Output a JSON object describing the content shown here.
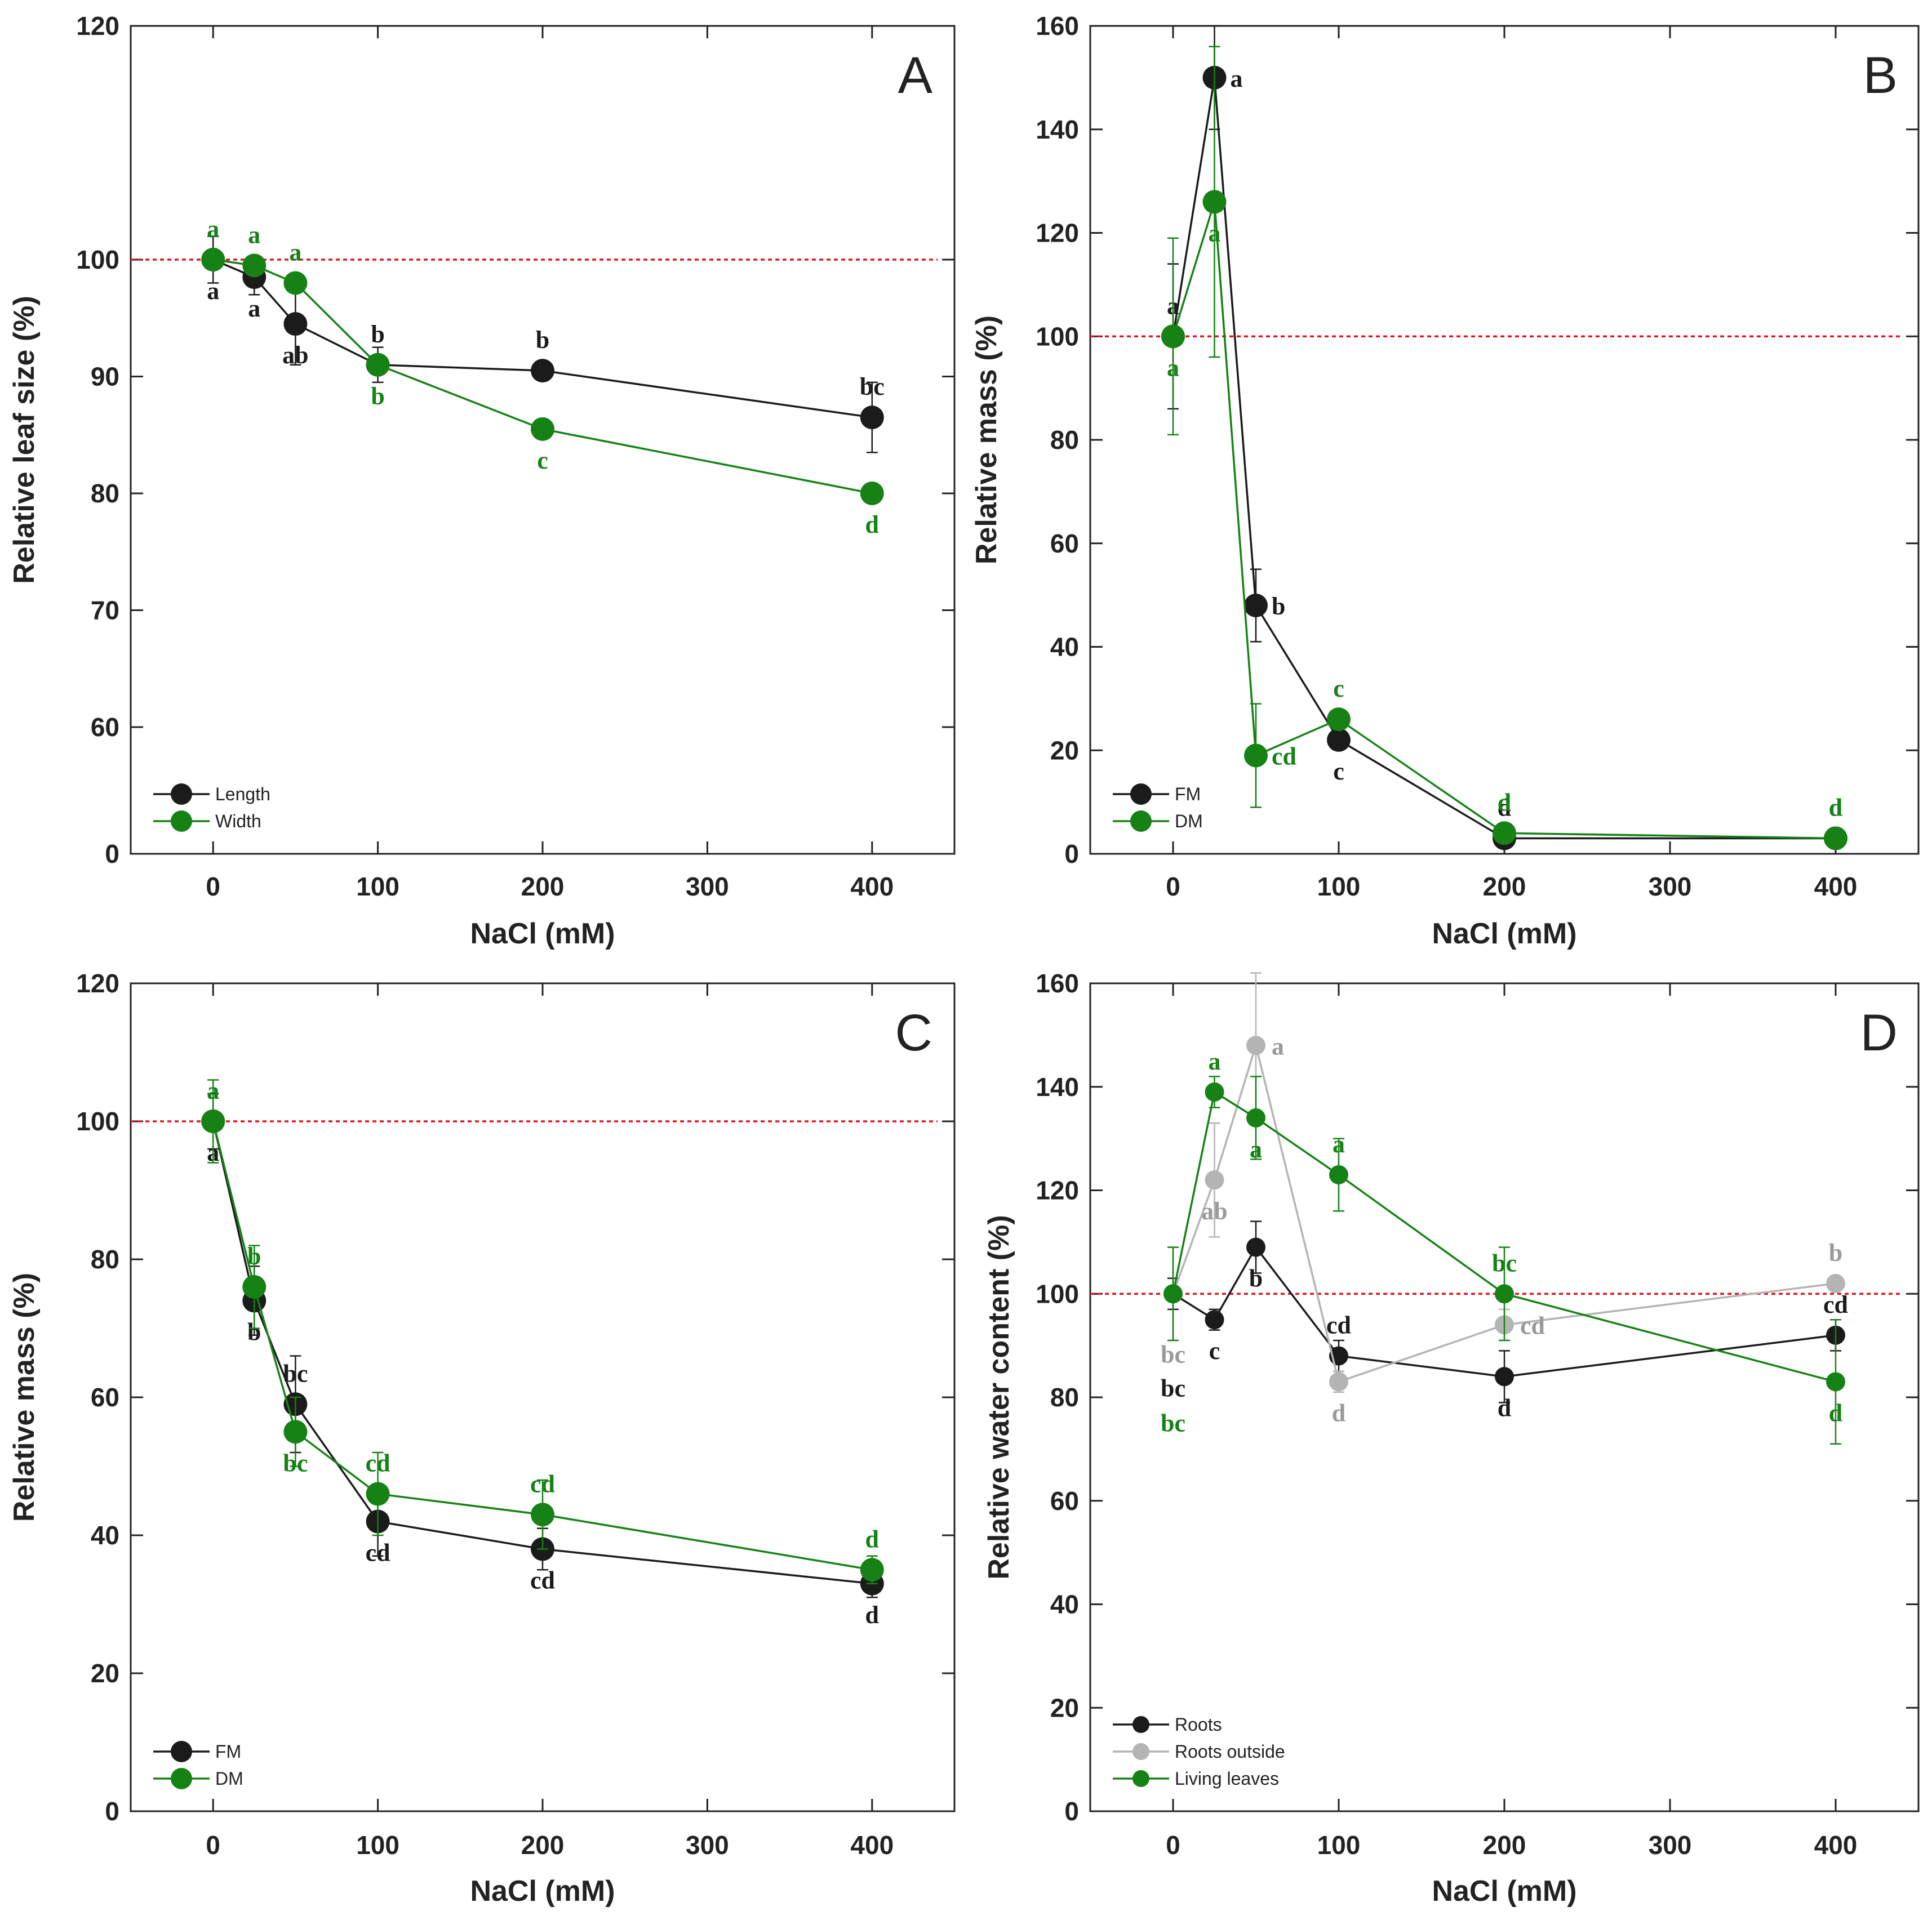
{
  "figure": {
    "description_title": "",
    "colors": {
      "black": "#1b1b1b",
      "green": "#168216",
      "gray": "#b4b4b4",
      "gray_letter": "#9a9a9a",
      "reference_line": "#e0141b",
      "axis": "#222222"
    }
  },
  "chart_data": [
    {
      "panel": "A",
      "type": "line",
      "xlabel": "NaCl (mM)",
      "ylabel": "Relative leaf size (%)",
      "xlim": [
        -50,
        450
      ],
      "ylim": [
        0,
        120
      ],
      "y_broken": true,
      "y_tick_values": [
        0,
        60,
        70,
        80,
        90,
        100,
        120
      ],
      "y_tick_labels": [
        "0",
        "60",
        "70",
        "80",
        "90",
        "100",
        "120"
      ],
      "x_ticks": [
        0,
        100,
        200,
        300,
        400
      ],
      "x_tick_labels": [
        "0",
        "100",
        "200",
        "300",
        "400"
      ],
      "reference_line": 100,
      "legend_position": "bottom-left",
      "series": [
        {
          "name": "Length",
          "color": "black",
          "x": [
            0,
            25,
            50,
            100,
            200,
            400
          ],
          "y": [
            100,
            98.5,
            94.5,
            91,
            90.5,
            86.5
          ],
          "err": [
            2,
            1.5,
            3.5,
            1.5,
            0.5,
            3
          ],
          "letters": [
            "a",
            "a",
            "ab",
            "b",
            "b",
            "bc"
          ],
          "letter_pos": [
            "below",
            "below",
            "below",
            "above",
            "above",
            "above"
          ]
        },
        {
          "name": "Width",
          "color": "green",
          "x": [
            0,
            25,
            50,
            100,
            200,
            400
          ],
          "y": [
            100,
            99.5,
            98,
            91,
            85.5,
            80
          ],
          "err": [
            0.5,
            0.5,
            0.5,
            0.5,
            0.5,
            0.5
          ],
          "letters": [
            "a",
            "a",
            "a",
            "b",
            "c",
            "d"
          ],
          "letter_pos": [
            "above",
            "above",
            "above",
            "below",
            "below",
            "below"
          ]
        }
      ]
    },
    {
      "panel": "B",
      "type": "line",
      "xlabel": "NaCl (mM)",
      "ylabel": "Relative mass (%)",
      "xlim": [
        -50,
        450
      ],
      "ylim": [
        0,
        160
      ],
      "y_tick_values": [
        0,
        20,
        40,
        60,
        80,
        100,
        120,
        140,
        160
      ],
      "y_tick_labels": [
        "0",
        "20",
        "40",
        "60",
        "80",
        "100",
        "120",
        "140",
        "160"
      ],
      "x_ticks": [
        0,
        100,
        200,
        300,
        400
      ],
      "x_tick_labels": [
        "0",
        "100",
        "200",
        "300",
        "400"
      ],
      "reference_line": 100,
      "legend_position": "bottom-left",
      "series": [
        {
          "name": "FM",
          "color": "black",
          "x": [
            0,
            25,
            50,
            100,
            200,
            400
          ],
          "y": [
            100,
            150,
            48,
            22,
            3,
            3
          ],
          "err": [
            14,
            10,
            7,
            1,
            0.5,
            0.5
          ],
          "letters": [
            "a",
            "a",
            "b",
            "c",
            "d",
            "d"
          ],
          "letter_pos": [
            "above",
            "right",
            "right",
            "below",
            "above",
            "above"
          ]
        },
        {
          "name": "DM",
          "color": "green",
          "x": [
            0,
            25,
            50,
            100,
            200,
            400
          ],
          "y": [
            100,
            126,
            19,
            26,
            4,
            3
          ],
          "err": [
            19,
            30,
            10,
            1,
            0.5,
            0.5
          ],
          "letters": [
            "a",
            "a",
            "cd",
            "c",
            "d",
            "d"
          ],
          "letter_pos": [
            "below",
            "below",
            "right",
            "above",
            "above",
            "above"
          ]
        }
      ]
    },
    {
      "panel": "C",
      "type": "line",
      "xlabel": "NaCl (mM)",
      "ylabel": "Relative mass (%)",
      "xlim": [
        -50,
        450
      ],
      "ylim": [
        0,
        120
      ],
      "y_tick_values": [
        0,
        20,
        40,
        60,
        80,
        100,
        120
      ],
      "y_tick_labels": [
        "0",
        "20",
        "40",
        "60",
        "80",
        "100",
        "120"
      ],
      "x_ticks": [
        0,
        100,
        200,
        300,
        400
      ],
      "x_tick_labels": [
        "0",
        "100",
        "200",
        "300",
        "400"
      ],
      "reference_line": 100,
      "legend_position": "bottom-left",
      "series": [
        {
          "name": "FM",
          "color": "black",
          "x": [
            0,
            25,
            50,
            100,
            200,
            400
          ],
          "y": [
            100,
            74,
            59,
            42,
            38,
            33
          ],
          "err": [
            4,
            5,
            7,
            5,
            3,
            2
          ],
          "letters": [
            "a",
            "b",
            "bc",
            "cd",
            "cd",
            "d"
          ],
          "letter_pos": [
            "below",
            "below",
            "above",
            "below",
            "below",
            "below"
          ]
        },
        {
          "name": "DM",
          "color": "green",
          "x": [
            0,
            25,
            50,
            100,
            200,
            400
          ],
          "y": [
            100,
            76,
            55,
            46,
            43,
            35
          ],
          "err": [
            6,
            6,
            5,
            6,
            5,
            2
          ],
          "letters": [
            "a",
            "b",
            "bc",
            "cd",
            "cd",
            "d"
          ],
          "letter_pos": [
            "above",
            "above",
            "below",
            "above",
            "above",
            "above"
          ]
        }
      ]
    },
    {
      "panel": "D",
      "type": "line",
      "xlabel": "NaCl (mM)",
      "ylabel": "Relative water content (%)",
      "xlim": [
        -50,
        450
      ],
      "ylim": [
        0,
        160
      ],
      "y_tick_values": [
        0,
        20,
        40,
        60,
        80,
        100,
        120,
        140,
        160
      ],
      "y_tick_labels": [
        "0",
        "20",
        "40",
        "60",
        "80",
        "100",
        "120",
        "140",
        "160"
      ],
      "x_ticks": [
        0,
        100,
        200,
        300,
        400
      ],
      "x_tick_labels": [
        "0",
        "100",
        "200",
        "300",
        "400"
      ],
      "reference_line": 100,
      "legend_position": "bottom-left",
      "series": [
        {
          "name": "Roots",
          "color": "black",
          "x": [
            0,
            25,
            50,
            100,
            200,
            400
          ],
          "y": [
            100,
            95,
            109,
            88,
            84,
            92
          ],
          "err": [
            3,
            2,
            5,
            3,
            5,
            3
          ],
          "letters": [
            "bc",
            "c",
            "b",
            "cd",
            "d",
            "cd"
          ],
          "letter_pos": [
            "below2",
            "below",
            "below",
            "above",
            "below",
            "above"
          ]
        },
        {
          "name": "Roots outside",
          "color": "gray",
          "x": [
            0,
            25,
            50,
            100,
            200,
            400
          ],
          "y": [
            100,
            122,
            148,
            83,
            94,
            102
          ],
          "err": [
            9,
            11,
            14,
            2,
            3,
            1
          ],
          "letters": [
            "bc",
            "ab",
            "a",
            "d",
            "cd",
            "b"
          ],
          "letter_pos": [
            "below",
            "below",
            "right",
            "below",
            "right",
            "above"
          ]
        },
        {
          "name": "Living leaves",
          "color": "green",
          "x": [
            0,
            25,
            50,
            100,
            200,
            400
          ],
          "y": [
            100,
            139,
            134,
            123,
            100,
            83
          ],
          "err": [
            9,
            3,
            8,
            7,
            9,
            12
          ],
          "letters": [
            "bc",
            "a",
            "a",
            "a",
            "bc",
            "d"
          ],
          "letter_pos": [
            "below3",
            "above",
            "below",
            "above",
            "above",
            "below"
          ]
        }
      ]
    }
  ]
}
